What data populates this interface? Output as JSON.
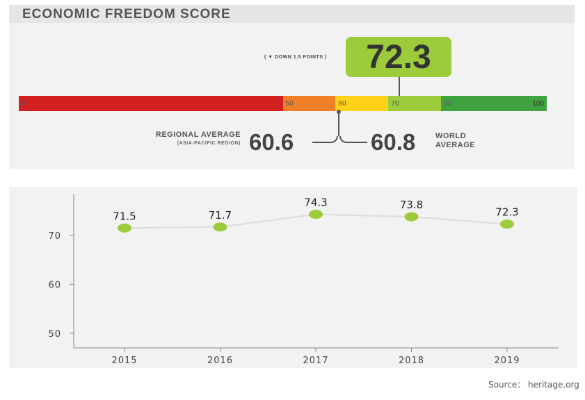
{
  "title": "ECONOMIC FREEDOM SCORE",
  "score": {
    "value": "72.3",
    "change_note": "( ▼ DOWN 1.5 POINTS )"
  },
  "scale": {
    "segments": [
      {
        "label": "0",
        "from": 0,
        "to": 50,
        "color": "#d42020"
      },
      {
        "label": "50",
        "from": 50,
        "to": 60,
        "color": "#f08028"
      },
      {
        "label": "60",
        "from": 60,
        "to": 70,
        "color": "#ffd21a"
      },
      {
        "label": "70",
        "from": 70,
        "to": 80,
        "color": "#9ccb3b"
      },
      {
        "label": "80",
        "from": 80,
        "to": 100,
        "color": "#3fa23f"
      }
    ],
    "end_label": "100"
  },
  "regional": {
    "label": "REGIONAL AVERAGE",
    "sublabel": "(ASIA-PACIFIC REGION)",
    "value": "60.6"
  },
  "world": {
    "label": "WORLD AVERAGE",
    "value": "60.8"
  },
  "chart_data": {
    "type": "line",
    "categories": [
      "2015",
      "2016",
      "2017",
      "2018",
      "2019"
    ],
    "values": [
      71.5,
      71.7,
      74.3,
      73.8,
      72.3
    ],
    "value_labels": [
      "71.5",
      "71.7",
      "74.3",
      "73.8",
      "72.3"
    ],
    "yticks": [
      50,
      60,
      70
    ],
    "ytick_labels": [
      "50",
      "60",
      "70"
    ],
    "ylim": [
      47,
      78.5
    ],
    "xlabel": "",
    "ylabel": "",
    "grid": false,
    "line_color": "#dcdcdc",
    "marker_color": "#9ccb3b"
  },
  "source": "Source： heritage.org"
}
